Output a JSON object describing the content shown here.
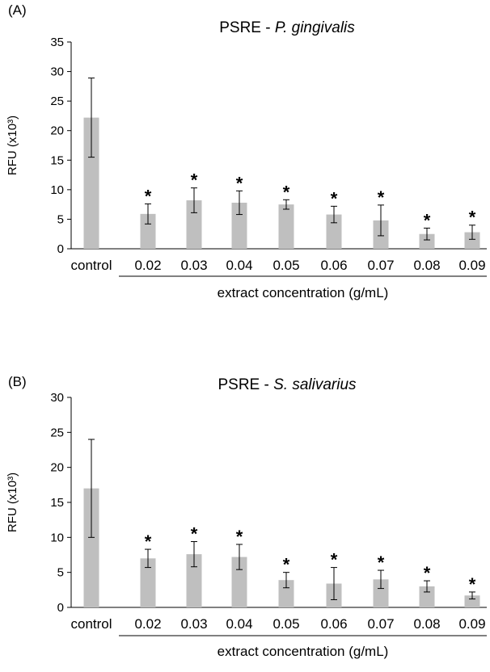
{
  "chart_data": [
    {
      "type": "bar",
      "panel_label": "(A)",
      "title_prefix": "PSRE - ",
      "title_species": "P. gingivalis",
      "ylabel": "RFU (x10³)",
      "xlabel": "extract concentration (g/mL)",
      "ylim": [
        0,
        35
      ],
      "yticks": [
        0,
        5,
        10,
        15,
        20,
        25,
        30,
        35
      ],
      "categories": [
        "control",
        "0.02",
        "0.03",
        "0.04",
        "0.05",
        "0.06",
        "0.07",
        "0.08",
        "0.09"
      ],
      "values": [
        22.2,
        5.9,
        8.2,
        7.8,
        7.5,
        5.8,
        4.8,
        2.5,
        2.8
      ],
      "errors": [
        6.7,
        1.7,
        2.1,
        2.0,
        0.8,
        1.4,
        2.6,
        1.0,
        1.2
      ],
      "significance": [
        "",
        "*",
        "*",
        "*",
        "*",
        "*",
        "*",
        "*",
        "*"
      ],
      "bar_color": "#bfbfbf"
    },
    {
      "type": "bar",
      "panel_label": "(B)",
      "title_prefix": "PSRE - ",
      "title_species": "S. salivarius",
      "ylabel": "RFU (x10³)",
      "xlabel": "extract concentration (g/mL)",
      "ylim": [
        0,
        30
      ],
      "yticks": [
        0,
        5,
        10,
        15,
        20,
        25,
        30
      ],
      "categories": [
        "control",
        "0.02",
        "0.03",
        "0.04",
        "0.05",
        "0.06",
        "0.07",
        "0.08",
        "0.09"
      ],
      "values": [
        17.0,
        7.0,
        7.6,
        7.2,
        3.9,
        3.4,
        4.0,
        3.0,
        1.7
      ],
      "errors": [
        7.0,
        1.3,
        1.8,
        1.8,
        1.1,
        2.3,
        1.3,
        0.8,
        0.5
      ],
      "significance": [
        "",
        "*",
        "*",
        "*",
        "*",
        "*",
        "*",
        "*",
        "*"
      ],
      "bar_color": "#bfbfbf"
    }
  ]
}
